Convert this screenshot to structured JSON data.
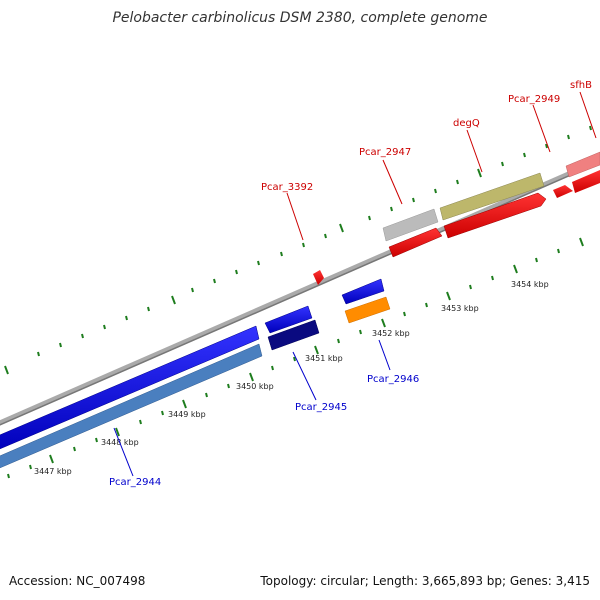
{
  "title": "Pelobacter carbinolicus DSM 2380, complete genome",
  "footer": {
    "accession": "Accession: NC_007498",
    "summary": "Topology: circular; Length: 3,665,893 bp; Genes: 3,415"
  },
  "colors": {
    "backbone": "#888888",
    "tick": "#1e7d1e",
    "tick_label": "#222222",
    "label_forward": "#cc0000",
    "label_reverse": "#0000cc"
  },
  "scale_labels": [
    "3447 kbp",
    "3448 kbp",
    "3449 kbp",
    "3450 kbp",
    "3451 kbp",
    "3452 kbp",
    "3453 kbp",
    "3454 kbp"
  ],
  "gene_labels": [
    {
      "text": "Pcar_3392",
      "strand": "forward"
    },
    {
      "text": "Pcar_2947",
      "strand": "forward"
    },
    {
      "text": "degQ",
      "strand": "forward"
    },
    {
      "text": "Pcar_2949",
      "strand": "forward"
    },
    {
      "text": "sfhB",
      "strand": "forward"
    },
    {
      "text": "Pcar_2946",
      "strand": "reverse"
    },
    {
      "text": "Pcar_2945",
      "strand": "reverse"
    },
    {
      "text": "Pcar_2944",
      "strand": "reverse"
    }
  ]
}
